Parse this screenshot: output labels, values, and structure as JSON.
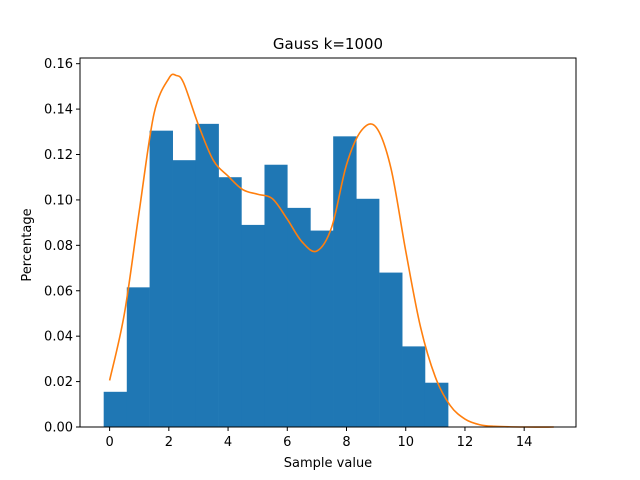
{
  "chart_data": {
    "type": "bar",
    "title": "Gauss k=1000",
    "xlabel": "Sample value",
    "ylabel": "Percentage",
    "xlim": [
      -1.0,
      15.75
    ],
    "ylim": [
      0,
      0.1625
    ],
    "xticks": [
      0,
      2,
      4,
      6,
      8,
      10,
      12,
      14
    ],
    "xtick_labels": [
      "0",
      "2",
      "4",
      "6",
      "8",
      "10",
      "12",
      "14"
    ],
    "yticks": [
      0.0,
      0.02,
      0.04,
      0.06,
      0.08,
      0.1,
      0.12,
      0.14,
      0.16
    ],
    "ytick_labels": [
      "0.00",
      "0.02",
      "0.04",
      "0.06",
      "0.08",
      "0.10",
      "0.12",
      "0.14",
      "0.16"
    ],
    "grid": false,
    "legend": "none",
    "histogram": {
      "bin_edges": [
        -0.2,
        0.58,
        1.35,
        2.13,
        2.9,
        3.68,
        4.45,
        5.23,
        6.0,
        6.78,
        7.55,
        8.33,
        9.1,
        9.88,
        10.65,
        11.43
      ],
      "values": [
        0.0155,
        0.0615,
        0.1305,
        0.1175,
        0.1335,
        0.11,
        0.089,
        0.1155,
        0.0965,
        0.0865,
        0.128,
        0.1005,
        0.068,
        0.0355,
        0.0195
      ],
      "color": "#1f77b4"
    },
    "density_curve": {
      "color": "#ff7f0e",
      "x": [
        0.0,
        0.5,
        1.0,
        1.5,
        2.0,
        2.25,
        2.5,
        3.0,
        3.5,
        4.0,
        4.5,
        5.0,
        5.5,
        6.0,
        6.5,
        7.0,
        7.5,
        8.0,
        8.5,
        9.0,
        9.5,
        10.0,
        10.5,
        11.0,
        11.5,
        12.0,
        12.5,
        13.0,
        14.0,
        15.0
      ],
      "y": [
        0.0205,
        0.05,
        0.095,
        0.138,
        0.1535,
        0.1548,
        0.1515,
        0.133,
        0.1175,
        0.1105,
        0.1045,
        0.1025,
        0.1005,
        0.0915,
        0.0815,
        0.0775,
        0.088,
        0.1155,
        0.1305,
        0.132,
        0.114,
        0.0775,
        0.044,
        0.022,
        0.0095,
        0.0035,
        0.001,
        0.0003,
        0.0,
        0.0
      ]
    }
  }
}
